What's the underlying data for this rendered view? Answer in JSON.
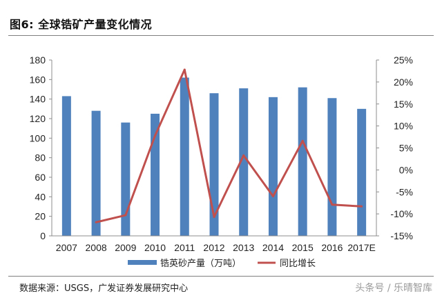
{
  "figure": {
    "title": "图6:  全球锆矿产量变化情况",
    "source": "数据来源：USGS，广发证券发展研究中心",
    "watermark": "头条号 / 乐晴智库"
  },
  "chart_data": {
    "type": "bar",
    "categories": [
      "2007",
      "2008",
      "2009",
      "2010",
      "2011",
      "2012",
      "2013",
      "2014",
      "2015",
      "2016",
      "2017E"
    ],
    "series": [
      {
        "name": "锆英砂产量（万吨）",
        "type": "bar",
        "axis": "left",
        "color": "#4f81bd",
        "values": [
          143,
          128,
          116,
          125,
          162,
          146,
          151,
          142,
          152,
          141,
          130
        ]
      },
      {
        "name": "同比增长",
        "type": "line",
        "axis": "right",
        "color": "#c0504d",
        "values": [
          null,
          -11.9,
          -10.3,
          7.8,
          22.8,
          -10.7,
          3.3,
          -6.0,
          6.6,
          -7.9,
          -8.3
        ]
      }
    ],
    "y_left": {
      "ylim": [
        0,
        180
      ],
      "ticks": [
        "0",
        "20",
        "40",
        "60",
        "80",
        "100",
        "120",
        "140",
        "160",
        "180"
      ]
    },
    "y_right": {
      "ylim": [
        -15,
        25
      ],
      "ticks": [
        "-15%",
        "-10%",
        "-5%",
        "0%",
        "5%",
        "10%",
        "15%",
        "20%",
        "25%"
      ]
    },
    "grid": false,
    "legend_position": "bottom"
  }
}
